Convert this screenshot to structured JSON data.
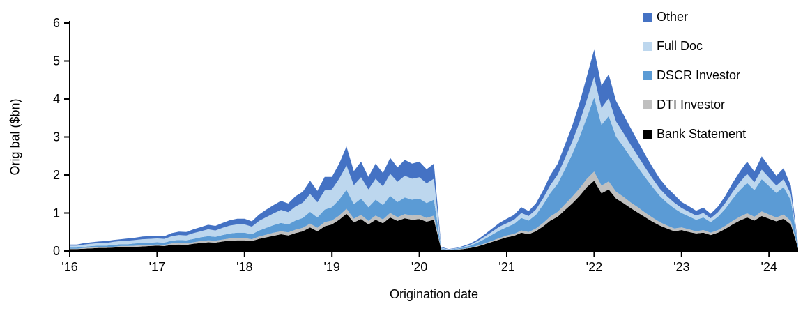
{
  "chart_data": {
    "type": "area",
    "stacked": true,
    "title": "",
    "xlabel": "Origination date",
    "ylabel": "Orig bal ($bn)",
    "ylim": [
      0,
      6
    ],
    "yticks": [
      0,
      1,
      2,
      3,
      4,
      5,
      6
    ],
    "x_unit": "month",
    "x_range": "2016-01 to 2024-05",
    "grid": "off",
    "legend_position": "top-right",
    "x_tick_indices": [
      0,
      12,
      24,
      36,
      48,
      60,
      72,
      84,
      96
    ],
    "x_tick_labels": [
      "'16",
      "'17",
      "'18",
      "'19",
      "'20",
      "'21",
      "'22",
      "'23",
      "'24"
    ],
    "legend": [
      {
        "label": "Other",
        "color": "#4472C4"
      },
      {
        "label": "Full Doc",
        "color": "#BDD7EE"
      },
      {
        "label": "DSCR Investor",
        "color": "#5B9BD5"
      },
      {
        "label": "DTI Investor",
        "color": "#BFBFBF"
      },
      {
        "label": "Bank Statement",
        "color": "#000000"
      }
    ],
    "series": [
      {
        "name": "Bank Statement",
        "color": "#000000",
        "values": [
          0.05,
          0.05,
          0.06,
          0.07,
          0.08,
          0.08,
          0.09,
          0.1,
          0.1,
          0.11,
          0.12,
          0.13,
          0.14,
          0.13,
          0.16,
          0.17,
          0.16,
          0.19,
          0.21,
          0.23,
          0.22,
          0.25,
          0.27,
          0.28,
          0.28,
          0.26,
          0.32,
          0.36,
          0.4,
          0.44,
          0.41,
          0.47,
          0.52,
          0.62,
          0.52,
          0.65,
          0.7,
          0.82,
          0.98,
          0.75,
          0.84,
          0.7,
          0.82,
          0.73,
          0.88,
          0.79,
          0.86,
          0.82,
          0.84,
          0.77,
          0.82,
          0.04,
          0.02,
          0.03,
          0.05,
          0.08,
          0.12,
          0.18,
          0.24,
          0.3,
          0.36,
          0.4,
          0.48,
          0.44,
          0.52,
          0.65,
          0.8,
          0.9,
          1.08,
          1.25,
          1.45,
          1.68,
          1.85,
          1.52,
          1.62,
          1.38,
          1.26,
          1.13,
          1.01,
          0.89,
          0.77,
          0.67,
          0.59,
          0.52,
          0.55,
          0.5,
          0.46,
          0.48,
          0.42,
          0.48,
          0.58,
          0.7,
          0.8,
          0.88,
          0.8,
          0.92,
          0.85,
          0.78,
          0.85,
          0.7,
          0.07
        ]
      },
      {
        "name": "DTI Investor",
        "color": "#BFBFBF",
        "values": [
          0.01,
          0.01,
          0.02,
          0.02,
          0.02,
          0.02,
          0.02,
          0.03,
          0.03,
          0.03,
          0.03,
          0.03,
          0.03,
          0.03,
          0.04,
          0.04,
          0.04,
          0.04,
          0.05,
          0.05,
          0.05,
          0.05,
          0.06,
          0.06,
          0.06,
          0.05,
          0.06,
          0.07,
          0.08,
          0.08,
          0.08,
          0.09,
          0.09,
          0.1,
          0.09,
          0.11,
          0.1,
          0.11,
          0.13,
          0.1,
          0.11,
          0.09,
          0.11,
          0.1,
          0.12,
          0.1,
          0.11,
          0.11,
          0.11,
          0.1,
          0.11,
          0.01,
          0.0,
          0.01,
          0.01,
          0.01,
          0.02,
          0.02,
          0.03,
          0.04,
          0.05,
          0.05,
          0.06,
          0.06,
          0.07,
          0.09,
          0.11,
          0.13,
          0.15,
          0.18,
          0.2,
          0.22,
          0.24,
          0.2,
          0.21,
          0.18,
          0.17,
          0.15,
          0.14,
          0.12,
          0.11,
          0.09,
          0.08,
          0.07,
          0.07,
          0.07,
          0.06,
          0.07,
          0.06,
          0.07,
          0.08,
          0.09,
          0.1,
          0.11,
          0.1,
          0.12,
          0.11,
          0.1,
          0.11,
          0.09,
          0.01
        ]
      },
      {
        "name": "DSCR Investor",
        "color": "#5B9BD5",
        "values": [
          0.03,
          0.03,
          0.03,
          0.04,
          0.04,
          0.04,
          0.05,
          0.05,
          0.05,
          0.06,
          0.06,
          0.06,
          0.06,
          0.06,
          0.07,
          0.08,
          0.08,
          0.09,
          0.1,
          0.11,
          0.1,
          0.12,
          0.13,
          0.14,
          0.14,
          0.13,
          0.16,
          0.18,
          0.2,
          0.22,
          0.21,
          0.24,
          0.26,
          0.31,
          0.27,
          0.33,
          0.35,
          0.42,
          0.5,
          0.38,
          0.43,
          0.36,
          0.42,
          0.38,
          0.45,
          0.4,
          0.44,
          0.42,
          0.43,
          0.39,
          0.42,
          0.02,
          0.01,
          0.02,
          0.03,
          0.05,
          0.08,
          0.12,
          0.16,
          0.2,
          0.22,
          0.26,
          0.33,
          0.3,
          0.36,
          0.48,
          0.62,
          0.74,
          0.92,
          1.12,
          1.35,
          1.62,
          1.95,
          1.6,
          1.72,
          1.45,
          1.32,
          1.19,
          1.06,
          0.93,
          0.81,
          0.69,
          0.6,
          0.53,
          0.38,
          0.34,
          0.3,
          0.33,
          0.28,
          0.35,
          0.45,
          0.58,
          0.7,
          0.8,
          0.7,
          0.85,
          0.75,
          0.65,
          0.72,
          0.55,
          0.05
        ]
      },
      {
        "name": "Full Doc",
        "color": "#BDD7EE",
        "values": [
          0.05,
          0.05,
          0.06,
          0.06,
          0.07,
          0.07,
          0.08,
          0.08,
          0.09,
          0.09,
          0.1,
          0.1,
          0.1,
          0.1,
          0.12,
          0.13,
          0.13,
          0.15,
          0.16,
          0.18,
          0.17,
          0.19,
          0.21,
          0.22,
          0.22,
          0.2,
          0.25,
          0.28,
          0.31,
          0.34,
          0.32,
          0.37,
          0.4,
          0.47,
          0.4,
          0.5,
          0.47,
          0.55,
          0.64,
          0.5,
          0.56,
          0.47,
          0.55,
          0.49,
          0.58,
          0.53,
          0.57,
          0.55,
          0.56,
          0.52,
          0.55,
          0.02,
          0.01,
          0.01,
          0.02,
          0.03,
          0.04,
          0.06,
          0.08,
          0.1,
          0.1,
          0.11,
          0.13,
          0.12,
          0.14,
          0.17,
          0.21,
          0.24,
          0.29,
          0.33,
          0.39,
          0.46,
          0.54,
          0.44,
          0.47,
          0.4,
          0.36,
          0.33,
          0.29,
          0.26,
          0.22,
          0.19,
          0.17,
          0.15,
          0.13,
          0.12,
          0.11,
          0.12,
          0.1,
          0.12,
          0.15,
          0.18,
          0.21,
          0.24,
          0.21,
          0.25,
          0.22,
          0.19,
          0.21,
          0.16,
          0.02
        ]
      },
      {
        "name": "Other",
        "color": "#4472C4",
        "values": [
          0.03,
          0.03,
          0.04,
          0.04,
          0.04,
          0.05,
          0.05,
          0.05,
          0.06,
          0.06,
          0.07,
          0.07,
          0.07,
          0.07,
          0.08,
          0.09,
          0.09,
          0.1,
          0.11,
          0.12,
          0.12,
          0.13,
          0.14,
          0.15,
          0.15,
          0.14,
          0.17,
          0.2,
          0.22,
          0.24,
          0.23,
          0.27,
          0.29,
          0.35,
          0.3,
          0.36,
          0.33,
          0.4,
          0.5,
          0.37,
          0.41,
          0.33,
          0.4,
          0.35,
          0.42,
          0.38,
          0.42,
          0.4,
          0.41,
          0.37,
          0.4,
          0.02,
          0.01,
          0.01,
          0.02,
          0.03,
          0.04,
          0.06,
          0.08,
          0.1,
          0.12,
          0.13,
          0.15,
          0.13,
          0.16,
          0.21,
          0.26,
          0.29,
          0.36,
          0.42,
          0.51,
          0.62,
          0.72,
          0.59,
          0.63,
          0.54,
          0.49,
          0.44,
          0.39,
          0.34,
          0.3,
          0.26,
          0.23,
          0.21,
          0.16,
          0.15,
          0.13,
          0.14,
          0.12,
          0.15,
          0.19,
          0.24,
          0.28,
          0.32,
          0.28,
          0.35,
          0.3,
          0.26,
          0.29,
          0.22,
          0.02
        ]
      }
    ]
  }
}
